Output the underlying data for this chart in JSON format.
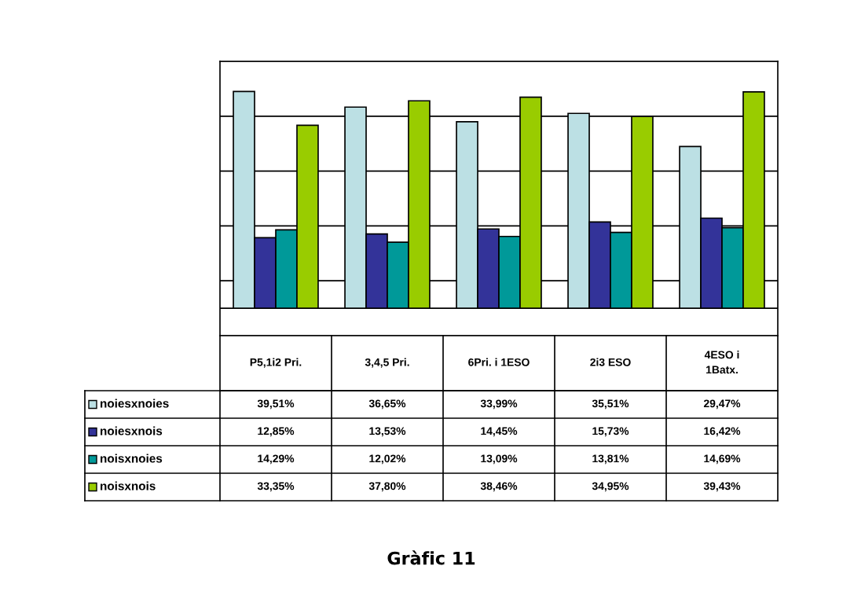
{
  "chart_data": {
    "type": "bar",
    "title": "Gràfic 11",
    "categories": [
      "P5,1i2 Pri.",
      "3,4,5 Pri.",
      "6Pri. i 1ESO",
      "2i3 ESO",
      "4ESO i\n1Batx."
    ],
    "series": [
      {
        "name": "noiesxnoies",
        "color": "#bce0e4",
        "values": [
          39.51,
          36.65,
          33.99,
          35.51,
          29.47
        ],
        "value_labels": [
          "39,51%",
          "36,65%",
          "33,99%",
          "35,51%",
          "29,47%"
        ]
      },
      {
        "name": "noiesxnois",
        "color": "#333399",
        "values": [
          12.85,
          13.53,
          14.45,
          15.73,
          16.42
        ],
        "value_labels": [
          "12,85%",
          "13,53%",
          "14,45%",
          "15,73%",
          "16,42%"
        ]
      },
      {
        "name": "noisxnoies",
        "color": "#009999",
        "values": [
          14.29,
          12.02,
          13.09,
          13.81,
          14.69
        ],
        "value_labels": [
          "14,29%",
          "12,02%",
          "13,09%",
          "13,81%",
          "14,69%"
        ]
      },
      {
        "name": "noisxnois",
        "color": "#99cc00",
        "values": [
          33.35,
          37.8,
          38.46,
          34.95,
          39.43
        ],
        "value_labels": [
          "33,35%",
          "37,80%",
          "38,46%",
          "34,95%",
          "39,43%"
        ]
      }
    ],
    "ylim": [
      -5,
      45
    ],
    "yticks": [
      {
        "value": -5,
        "label": null
      },
      {
        "value": 5,
        "label": null
      },
      {
        "value": 15,
        "label": null
      },
      {
        "value": 25,
        "label": null
      },
      {
        "value": 35,
        "label": null
      },
      {
        "value": 45,
        "label": null
      }
    ],
    "ref_lines": [
      {
        "axis": "y",
        "value": 0,
        "color": "#000000"
      }
    ],
    "grid": "y",
    "legend": "bottom",
    "tick_labels": "x"
  }
}
